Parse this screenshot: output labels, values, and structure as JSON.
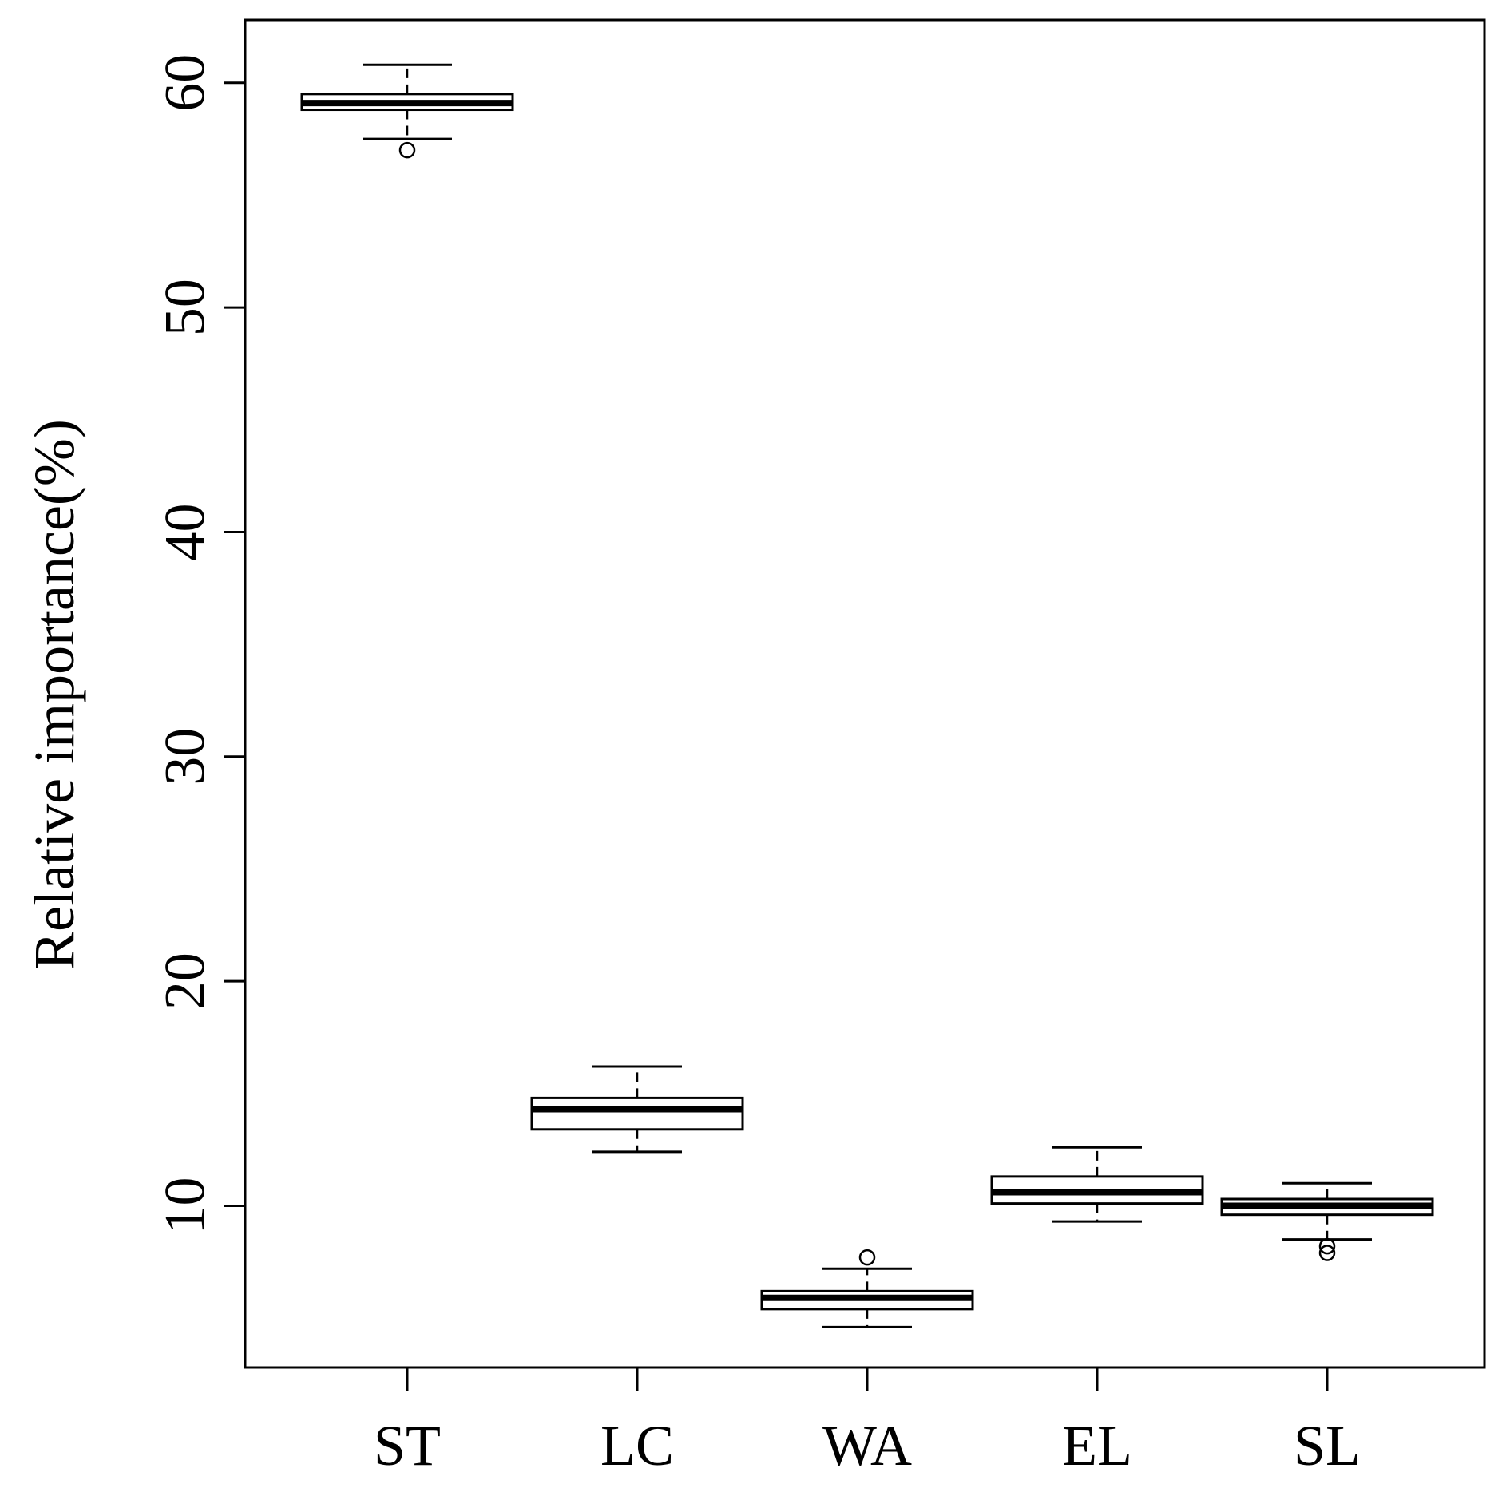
{
  "chart_data": {
    "type": "box",
    "title": "",
    "xlabel": "",
    "ylabel": "Relative importance(%)",
    "ylim": [
      2.8,
      62.8
    ],
    "yticks": [
      10,
      20,
      30,
      40,
      50,
      60
    ],
    "ytick_labels": [
      "10",
      "20",
      "30",
      "40",
      "50",
      "60"
    ],
    "categories": [
      "ST",
      "LC",
      "WA",
      "EL",
      "SL"
    ],
    "boxes": [
      {
        "category": "ST",
        "whisker_low": 57.5,
        "q1": 58.8,
        "median": 59.1,
        "q3": 59.5,
        "whisker_high": 60.8,
        "outliers": [
          57.0
        ]
      },
      {
        "category": "LC",
        "whisker_low": 12.4,
        "q1": 13.4,
        "median": 14.3,
        "q3": 14.8,
        "whisker_high": 16.2,
        "outliers": []
      },
      {
        "category": "WA",
        "whisker_low": 4.6,
        "q1": 5.4,
        "median": 5.9,
        "q3": 6.2,
        "whisker_high": 7.2,
        "outliers": [
          7.7
        ]
      },
      {
        "category": "EL",
        "whisker_low": 9.3,
        "q1": 10.1,
        "median": 10.6,
        "q3": 11.3,
        "whisker_high": 12.6,
        "outliers": []
      },
      {
        "category": "SL",
        "whisker_low": 8.5,
        "q1": 9.6,
        "median": 10.0,
        "q3": 10.3,
        "whisker_high": 11.0,
        "outliers": [
          8.2,
          7.9
        ]
      }
    ],
    "grid": false,
    "legend": "none",
    "colors": {
      "stroke": "#000000",
      "box_fill": "#ffffff",
      "background": "#ffffff"
    }
  }
}
